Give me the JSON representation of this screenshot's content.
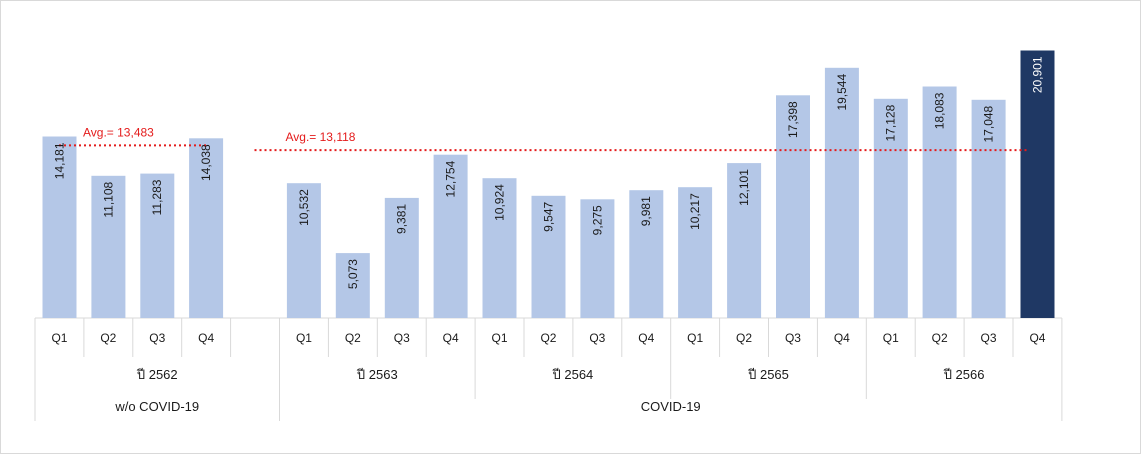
{
  "chart_data": {
    "type": "bar",
    "title": "",
    "xlabel": "",
    "ylabel": "",
    "ylim": [
      0,
      22500
    ],
    "grid": false,
    "legend": "none",
    "colors": {
      "bar": "#b4c7e7",
      "highlight": "#1f3864",
      "avg_line": "#e41b1b",
      "axis": "#d9d9d9",
      "label": "#1a1a1a"
    },
    "groups": [
      {
        "label": "w/o COVID-19",
        "years": [
          {
            "label": "ปี 2562",
            "quarters": [
              "Q1",
              "Q2",
              "Q3",
              "Q4"
            ],
            "values": [
              14181,
              11108,
              11283,
              14038
            ],
            "value_labels": [
              "14,181",
              "11,108",
              "11,283",
              "14,038"
            ]
          }
        ],
        "average": {
          "label": "Avg.= 13,483",
          "value": 13483
        }
      },
      {
        "label": "COVID-19",
        "years": [
          {
            "label": "ปี 2563",
            "quarters": [
              "Q1",
              "Q2",
              "Q3",
              "Q4"
            ],
            "values": [
              10532,
              5073,
              9381,
              12754
            ],
            "value_labels": [
              "10,532",
              "5,073",
              "9,381",
              "12,754"
            ]
          },
          {
            "label": "ปี 2564",
            "quarters": [
              "Q1",
              "Q2",
              "Q3",
              "Q4"
            ],
            "values": [
              10924,
              9547,
              9275,
              9981
            ],
            "value_labels": [
              "10,924",
              "9,547",
              "9,275",
              "9,981"
            ]
          },
          {
            "label": "ปี 2565",
            "quarters": [
              "Q1",
              "Q2",
              "Q3",
              "Q4"
            ],
            "values": [
              10217,
              12101,
              17398,
              19544
            ],
            "value_labels": [
              "10,217",
              "12,101",
              "17,398",
              "19,544"
            ]
          },
          {
            "label": "ปี 2566",
            "quarters": [
              "Q1",
              "Q2",
              "Q3",
              "Q4"
            ],
            "values": [
              17128,
              18083,
              17048,
              20901
            ],
            "value_labels": [
              "17,128",
              "18,083",
              "17,048",
              "20,901"
            ]
          }
        ],
        "average": {
          "label": "Avg.= 13,118",
          "value": 13118
        }
      }
    ],
    "highlight": {
      "year": "ปี 2566",
      "quarter": "Q4"
    }
  }
}
